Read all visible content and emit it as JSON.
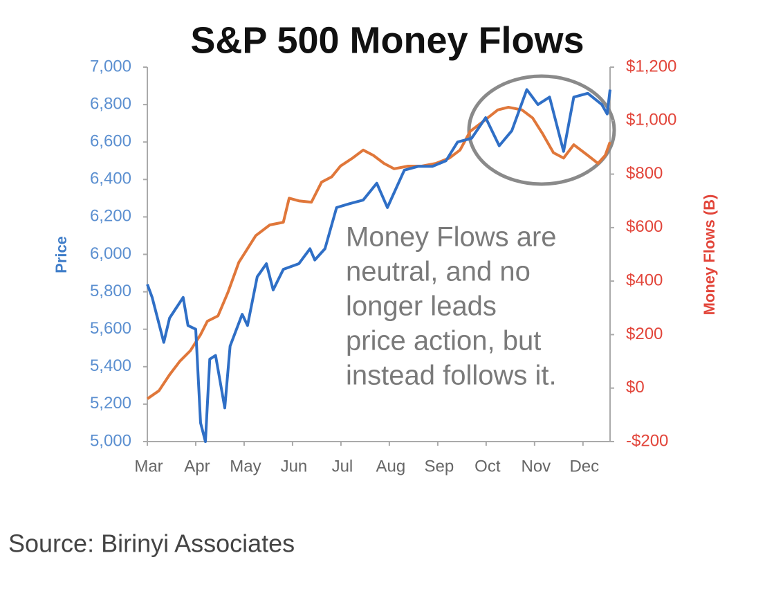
{
  "chart_data": {
    "type": "line",
    "title": "S&P 500 Money Flows",
    "ylabel": "Price",
    "y2label": "Money Flows (B)",
    "annotation": [
      "Money Flows are",
      "neutral, and no",
      "longer leads",
      "price action, but",
      "instead follows it."
    ],
    "source": "Source: Birinyi Associates",
    "xlim": [
      0,
      9.56
    ],
    "xticks": [
      {
        "value": 0,
        "label": "Mar"
      },
      {
        "value": 1,
        "label": "Apr"
      },
      {
        "value": 2,
        "label": "May"
      },
      {
        "value": 3,
        "label": "Jun"
      },
      {
        "value": 4,
        "label": "Jul"
      },
      {
        "value": 5,
        "label": "Aug"
      },
      {
        "value": 6,
        "label": "Sep"
      },
      {
        "value": 7,
        "label": "Oct"
      },
      {
        "value": 8,
        "label": "Nov"
      },
      {
        "value": 9,
        "label": "Dec"
      }
    ],
    "ylim": [
      5000,
      7000
    ],
    "yticks": [
      {
        "value": 5000,
        "label": "5,000"
      },
      {
        "value": 5200,
        "label": "5,200"
      },
      {
        "value": 5400,
        "label": "5,400"
      },
      {
        "value": 5600,
        "label": "5,600"
      },
      {
        "value": 5800,
        "label": "5,800"
      },
      {
        "value": 6000,
        "label": "6,000"
      },
      {
        "value": 6200,
        "label": "6,200"
      },
      {
        "value": 6400,
        "label": "6,400"
      },
      {
        "value": 6600,
        "label": "6,600"
      },
      {
        "value": 6800,
        "label": "6,800"
      },
      {
        "value": 7000,
        "label": "7,000"
      }
    ],
    "y2lim": [
      -200,
      1200
    ],
    "y2ticks": [
      {
        "value": -200,
        "label": "-$200"
      },
      {
        "value": 0,
        "label": "$0"
      },
      {
        "value": 200,
        "label": "$200"
      },
      {
        "value": 400,
        "label": "$400"
      },
      {
        "value": 600,
        "label": "$600"
      },
      {
        "value": 800,
        "label": "$800"
      },
      {
        "value": 1000,
        "label": "$1,000"
      },
      {
        "value": 1200,
        "label": "$1,200"
      }
    ],
    "series": [
      {
        "name": "Price",
        "color": "#2f6fc6",
        "x": [
          0,
          0.1,
          0.34,
          0.46,
          0.74,
          0.84,
          1.0,
          1.1,
          1.2,
          1.29,
          1.41,
          1.6,
          1.71,
          1.96,
          2.07,
          2.27,
          2.46,
          2.6,
          2.81,
          3.13,
          3.36,
          3.46,
          3.67,
          3.91,
          4.17,
          4.46,
          4.74,
          4.96,
          5.31,
          5.6,
          5.89,
          6.17,
          6.41,
          6.7,
          6.99,
          7.27,
          7.53,
          7.84,
          8.07,
          8.31,
          8.6,
          8.81,
          9.1,
          9.39,
          9.5,
          9.56
        ],
        "values": [
          5840,
          5770,
          5530,
          5660,
          5770,
          5620,
          5600,
          5100,
          5000,
          5440,
          5460,
          5180,
          5510,
          5680,
          5620,
          5880,
          5950,
          5810,
          5920,
          5950,
          6030,
          5970,
          6030,
          6250,
          6270,
          6290,
          6380,
          6250,
          6450,
          6470,
          6470,
          6500,
          6600,
          6620,
          6730,
          6580,
          6660,
          6880,
          6800,
          6840,
          6550,
          6840,
          6860,
          6800,
          6750,
          6880
        ]
      },
      {
        "name": "Money Flows",
        "color": "#e0773a",
        "axis": "y2",
        "x": [
          0,
          0.24,
          0.46,
          0.67,
          0.89,
          1.1,
          1.24,
          1.46,
          1.67,
          1.89,
          2.03,
          2.24,
          2.53,
          2.81,
          2.93,
          3.13,
          3.39,
          3.6,
          3.81,
          3.99,
          4.24,
          4.46,
          4.67,
          4.89,
          5.1,
          5.39,
          5.67,
          5.96,
          6.24,
          6.46,
          6.67,
          6.96,
          7.24,
          7.46,
          7.74,
          7.96,
          8.17,
          8.39,
          8.6,
          8.81,
          9.1,
          9.31,
          9.46,
          9.56
        ],
        "values": [
          -40,
          -10,
          50,
          100,
          140,
          200,
          250,
          270,
          360,
          470,
          510,
          570,
          610,
          620,
          710,
          700,
          695,
          770,
          790,
          830,
          860,
          890,
          870,
          840,
          820,
          830,
          830,
          840,
          860,
          890,
          960,
          1000,
          1040,
          1050,
          1040,
          1010,
          950,
          880,
          860,
          910,
          870,
          840,
          870,
          920
        ]
      }
    ]
  }
}
